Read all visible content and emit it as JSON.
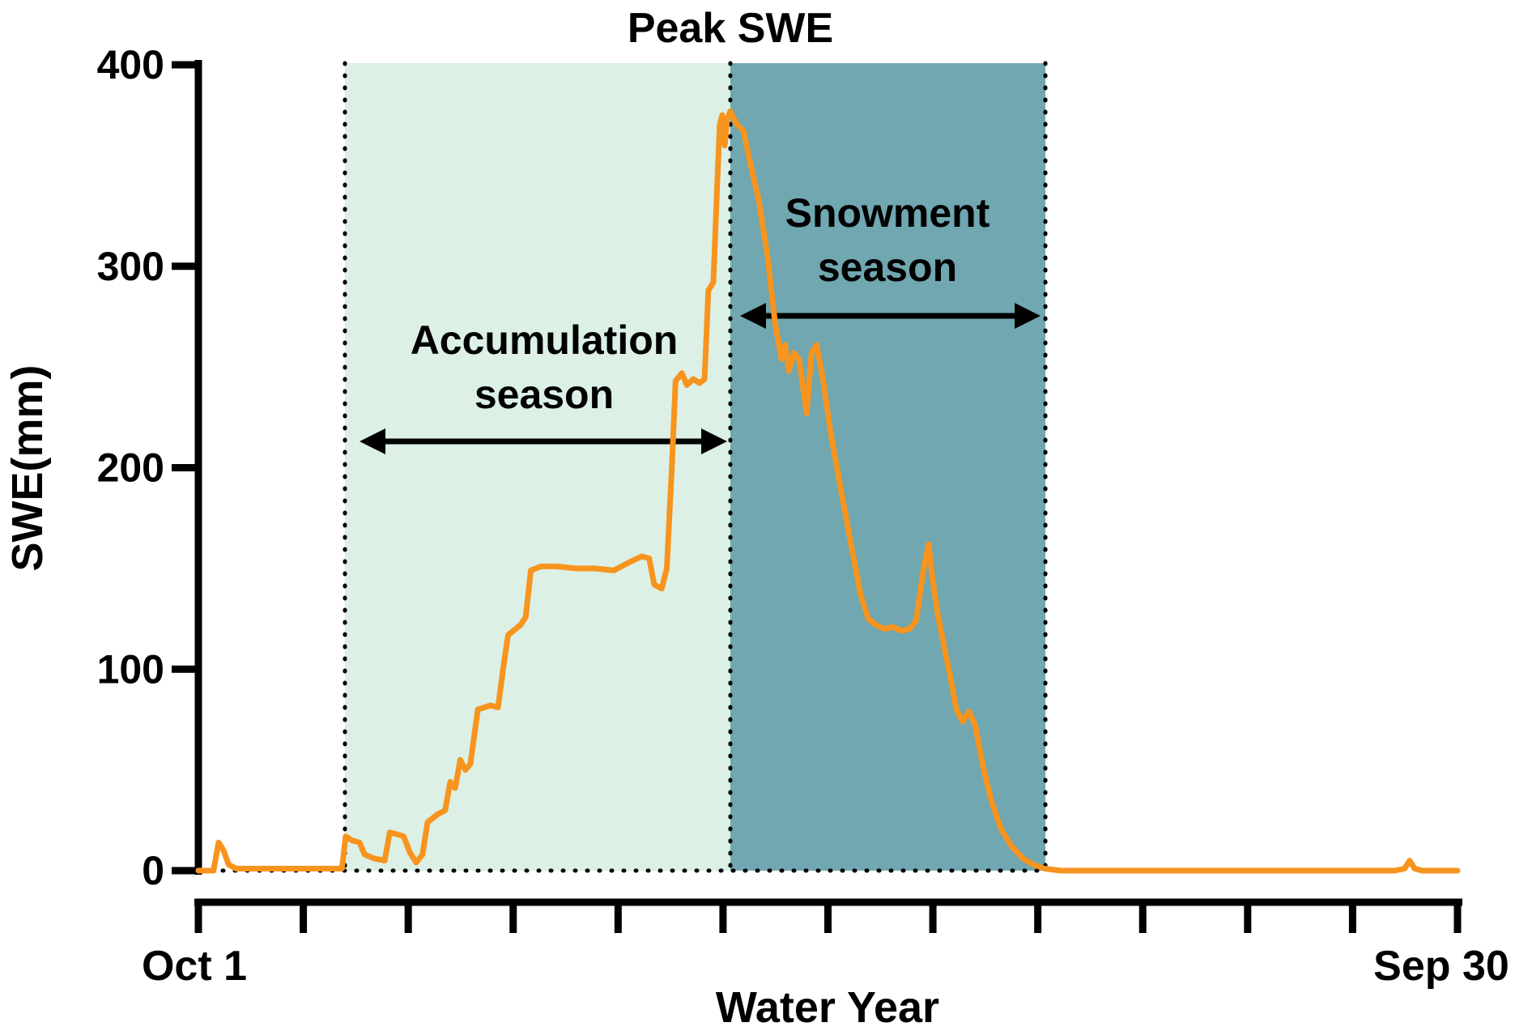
{
  "chart_data": {
    "type": "line",
    "title": "Peak SWE",
    "xlabel": "Water Year",
    "ylabel": "SWE(mm)",
    "x_start_label": "Oct 1",
    "x_end_label": "Sep 30",
    "ylim": [
      0,
      400
    ],
    "y_ticks": [
      0,
      100,
      200,
      300,
      400
    ],
    "x_month_ticks": 13,
    "series": [
      {
        "name": "SWE",
        "color": "#F7941E",
        "points": [
          [
            0,
            0
          ],
          [
            0.012,
            0
          ],
          [
            0.016,
            14
          ],
          [
            0.02,
            10
          ],
          [
            0.024,
            3
          ],
          [
            0.03,
            1
          ],
          [
            0.06,
            1
          ],
          [
            0.09,
            1
          ],
          [
            0.114,
            1
          ],
          [
            0.117,
            17
          ],
          [
            0.122,
            15
          ],
          [
            0.128,
            14
          ],
          [
            0.132,
            8
          ],
          [
            0.14,
            6
          ],
          [
            0.148,
            5
          ],
          [
            0.152,
            19
          ],
          [
            0.158,
            18
          ],
          [
            0.163,
            17
          ],
          [
            0.168,
            9
          ],
          [
            0.173,
            4
          ],
          [
            0.178,
            8
          ],
          [
            0.182,
            24
          ],
          [
            0.19,
            28
          ],
          [
            0.196,
            30
          ],
          [
            0.2,
            44
          ],
          [
            0.204,
            41
          ],
          [
            0.208,
            55
          ],
          [
            0.212,
            50
          ],
          [
            0.216,
            53
          ],
          [
            0.222,
            80
          ],
          [
            0.232,
            82
          ],
          [
            0.238,
            81
          ],
          [
            0.242,
            100
          ],
          [
            0.246,
            117
          ],
          [
            0.252,
            120
          ],
          [
            0.256,
            122
          ],
          [
            0.26,
            126
          ],
          [
            0.264,
            149
          ],
          [
            0.272,
            151
          ],
          [
            0.285,
            151
          ],
          [
            0.3,
            150
          ],
          [
            0.315,
            150
          ],
          [
            0.33,
            149
          ],
          [
            0.342,
            153
          ],
          [
            0.352,
            156
          ],
          [
            0.358,
            155
          ],
          [
            0.362,
            142
          ],
          [
            0.368,
            140
          ],
          [
            0.372,
            150
          ],
          [
            0.376,
            200
          ],
          [
            0.379,
            243
          ],
          [
            0.384,
            247
          ],
          [
            0.388,
            241
          ],
          [
            0.393,
            244
          ],
          [
            0.398,
            242
          ],
          [
            0.402,
            244
          ],
          [
            0.405,
            288
          ],
          [
            0.409,
            292
          ],
          [
            0.412,
            340
          ],
          [
            0.414,
            370
          ],
          [
            0.416,
            375
          ],
          [
            0.418,
            360
          ],
          [
            0.42,
            373
          ],
          [
            0.4225,
            377
          ],
          [
            0.427,
            371
          ],
          [
            0.433,
            367
          ],
          [
            0.438,
            352
          ],
          [
            0.445,
            333
          ],
          [
            0.452,
            305
          ],
          [
            0.458,
            272
          ],
          [
            0.463,
            254
          ],
          [
            0.466,
            261
          ],
          [
            0.469,
            248
          ],
          [
            0.473,
            257
          ],
          [
            0.477,
            254
          ],
          [
            0.48,
            241
          ],
          [
            0.483,
            227
          ],
          [
            0.487,
            257
          ],
          [
            0.491,
            261
          ],
          [
            0.496,
            244
          ],
          [
            0.502,
            218
          ],
          [
            0.51,
            190
          ],
          [
            0.518,
            163
          ],
          [
            0.526,
            137
          ],
          [
            0.532,
            125
          ],
          [
            0.538,
            122
          ],
          [
            0.545,
            120
          ],
          [
            0.552,
            121
          ],
          [
            0.558,
            119
          ],
          [
            0.565,
            120
          ],
          [
            0.57,
            124
          ],
          [
            0.576,
            150
          ],
          [
            0.58,
            162
          ],
          [
            0.583,
            145
          ],
          [
            0.587,
            128
          ],
          [
            0.592,
            112
          ],
          [
            0.597,
            97
          ],
          [
            0.602,
            80
          ],
          [
            0.607,
            74
          ],
          [
            0.612,
            79
          ],
          [
            0.617,
            72
          ],
          [
            0.623,
            52
          ],
          [
            0.63,
            34
          ],
          [
            0.638,
            20
          ],
          [
            0.646,
            12
          ],
          [
            0.655,
            6
          ],
          [
            0.663,
            3
          ],
          [
            0.672,
            1
          ],
          [
            0.685,
            0
          ],
          [
            0.75,
            0
          ],
          [
            0.85,
            0
          ],
          [
            0.94,
            0
          ],
          [
            0.95,
            0
          ],
          [
            0.958,
            1
          ],
          [
            0.962,
            5
          ],
          [
            0.966,
            1
          ],
          [
            0.972,
            0
          ],
          [
            1,
            0
          ]
        ]
      }
    ],
    "regions": [
      {
        "id": "accumulation-season",
        "label_line1": "Accumulation",
        "label_line2": "season",
        "start_frac": 0.1164,
        "end_frac": 0.4225,
        "fill": "#DCF0E5"
      },
      {
        "id": "snowmelt-season",
        "label_line1": "Snowment",
        "label_line2": "season",
        "start_frac": 0.4225,
        "end_frac": 0.6727,
        "fill": "#70A7B0"
      }
    ],
    "guides": {
      "zero_line_mm": 0,
      "vertical_fracs": [
        0.1164,
        0.4225,
        0.6727
      ]
    }
  },
  "colors": {
    "axis": "#000000",
    "background": "#FFFFFF",
    "annotation": "#000000"
  }
}
